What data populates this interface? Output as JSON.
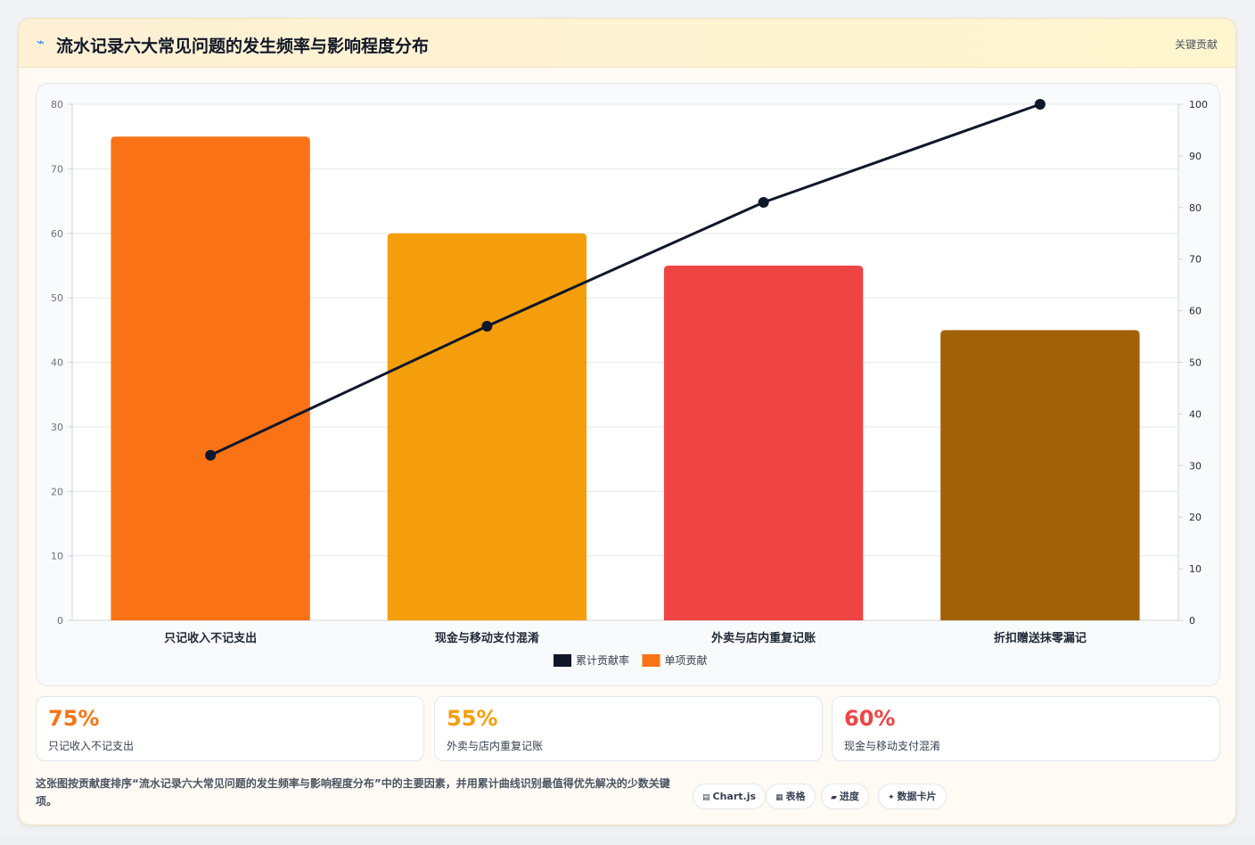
{
  "header": {
    "icon": "⌁",
    "title": "流水记录六大常见问题的发生频率与影响程度分布",
    "badge": "关键贡献"
  },
  "chart_data": {
    "type": "bar",
    "categories": [
      "只记收入不记支出",
      "现金与移动支付混淆",
      "外卖与店内重复记账",
      "折扣赠送抹零漏记"
    ],
    "series": [
      {
        "name": "单项贡献",
        "type": "bar",
        "axis": "left",
        "values": [
          75,
          60,
          55,
          45
        ],
        "colors": [
          "#f97316",
          "#f59e0b",
          "#ef4444",
          "#a16207"
        ]
      },
      {
        "name": "累计贡献率",
        "type": "line",
        "axis": "right",
        "values": [
          32,
          57,
          81,
          100
        ],
        "color": "#0f172a"
      }
    ],
    "y_left": {
      "min": 0,
      "max": 80,
      "step": 10
    },
    "y_right": {
      "min": 0,
      "max": 100,
      "step": 10
    },
    "legend": {
      "placement": "bottom-center",
      "order": [
        "累计贡献率",
        "单项贡献"
      ]
    },
    "grid": true
  },
  "stats": [
    {
      "value": "75%",
      "label": "只记收入不记支出",
      "color": "#f97316"
    },
    {
      "value": "55%",
      "label": "外卖与店内重复记账",
      "color": "#f59e0b"
    },
    {
      "value": "60%",
      "label": "现金与移动支付混淆",
      "color": "#ef4444"
    }
  ],
  "footer": {
    "description": "这张图按贡献度排序“流水记录六大常见问题的发生频率与影响程度分布”中的主要因素，并用累计曲线识别最值得优先解决的少数关键项。",
    "chips": [
      {
        "icon": "▤",
        "label": "Chart.js"
      },
      {
        "icon": "▦",
        "label": "表格"
      },
      {
        "icon": "▰",
        "label": "进度"
      },
      {
        "icon": "✦",
        "label": "数据卡片"
      }
    ]
  }
}
